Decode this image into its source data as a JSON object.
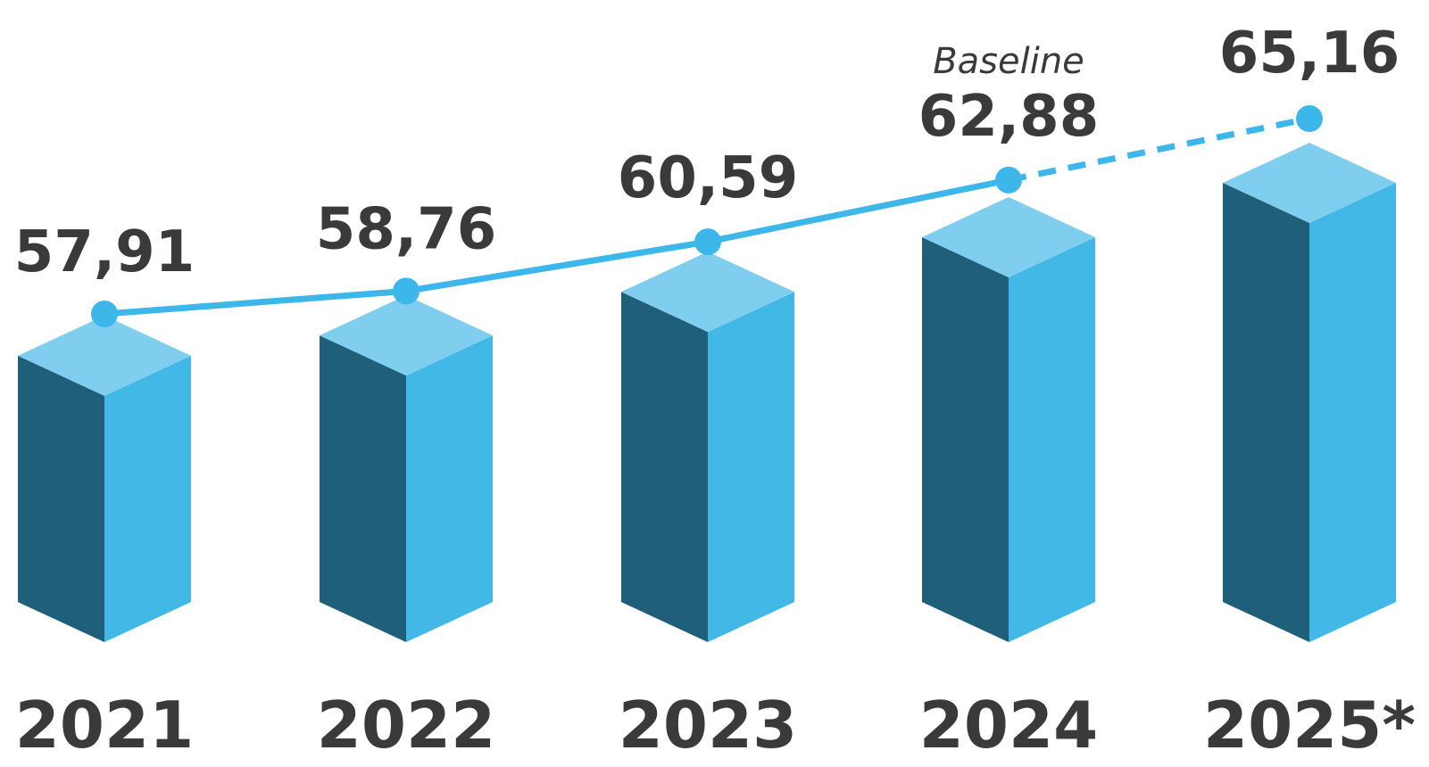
{
  "chart_data": {
    "type": "bar",
    "categories": [
      "2021",
      "2022",
      "2023",
      "2024",
      "2025*"
    ],
    "values": [
      57.91,
      58.76,
      60.59,
      62.88,
      65.16
    ],
    "data_labels": [
      "57,91",
      "58,76",
      "60,59",
      "62,88",
      "65,16"
    ],
    "annotations": [
      {
        "category": "2024",
        "text": "Baseline"
      }
    ],
    "trend_line": {
      "solid_through": "2024",
      "dashed_to": "2025*"
    },
    "style": "3d-columns",
    "colors": {
      "front_face": "#1f5f7a",
      "side_face": "#42b8e6",
      "top_face": "#7fcdef",
      "line": "#3db7e9",
      "text": "#3a3a3a"
    }
  }
}
